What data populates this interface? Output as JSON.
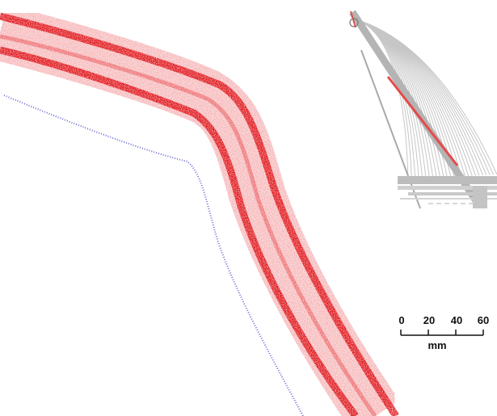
{
  "scale_bar": {
    "ticks": [
      "0",
      "20",
      "40",
      "60"
    ],
    "unit": "mm"
  },
  "colors": {
    "outer_band": "#e0191e",
    "inner_band": "#ef5a5e",
    "offset_line": "#4a4acc",
    "bridge_gray": "#b4b4b4",
    "bridge_highlight": "#e64a4a",
    "scale_black": "#111111"
  }
}
